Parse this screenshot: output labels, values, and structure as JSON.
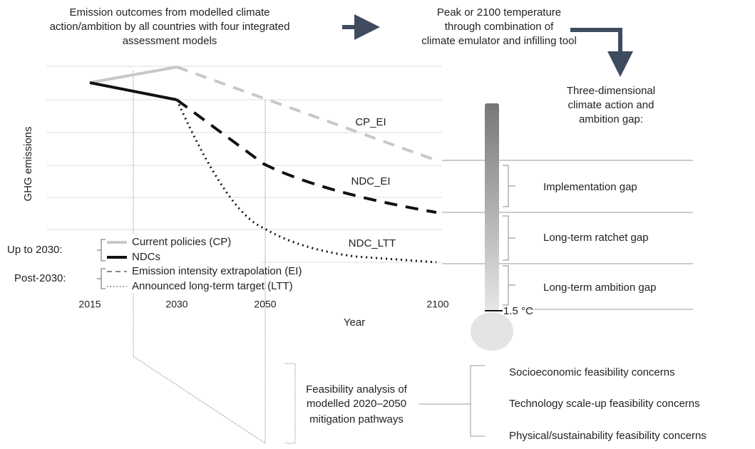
{
  "header": {
    "step1": [
      "Emission outcomes from modelled climate",
      "action/ambition by all countries with four integrated",
      "assessment models"
    ],
    "step2": [
      "Peak or 2100 temperature",
      "through combination of",
      "climate emulator and infilling tool"
    ],
    "step3": [
      "Three-dimensional",
      "climate action and",
      "ambition gap:"
    ]
  },
  "plot": {
    "y_label": "GHG emissions",
    "x_label": "Year",
    "x_ticks": [
      "2015",
      "2030",
      "2050",
      "2100"
    ],
    "line_labels": [
      "CP_EI",
      "NDC_EI",
      "NDC_LTT"
    ]
  },
  "legend": {
    "groups": [
      {
        "title": "Up to 2030:",
        "items": [
          "Current policies (CP)",
          "NDCs"
        ]
      },
      {
        "title": "Post-2030:",
        "items": [
          "Emission intensity extrapolation (EI)",
          "Announced long-term target (LTT)"
        ]
      }
    ]
  },
  "thermometer": {
    "mark": "1.5 °C",
    "gaps": [
      "Implementation gap",
      "Long-term ratchet gap",
      "Long-term ambition gap"
    ]
  },
  "feasibility": {
    "title": [
      "Feasibility analysis of",
      "modelled 2020–2050",
      "mitigation pathways"
    ],
    "concerns": [
      "Socioeconomic feasibility concerns",
      "Technology scale-up feasibility concerns",
      "Physical/sustainability feasibility concerns"
    ]
  }
}
